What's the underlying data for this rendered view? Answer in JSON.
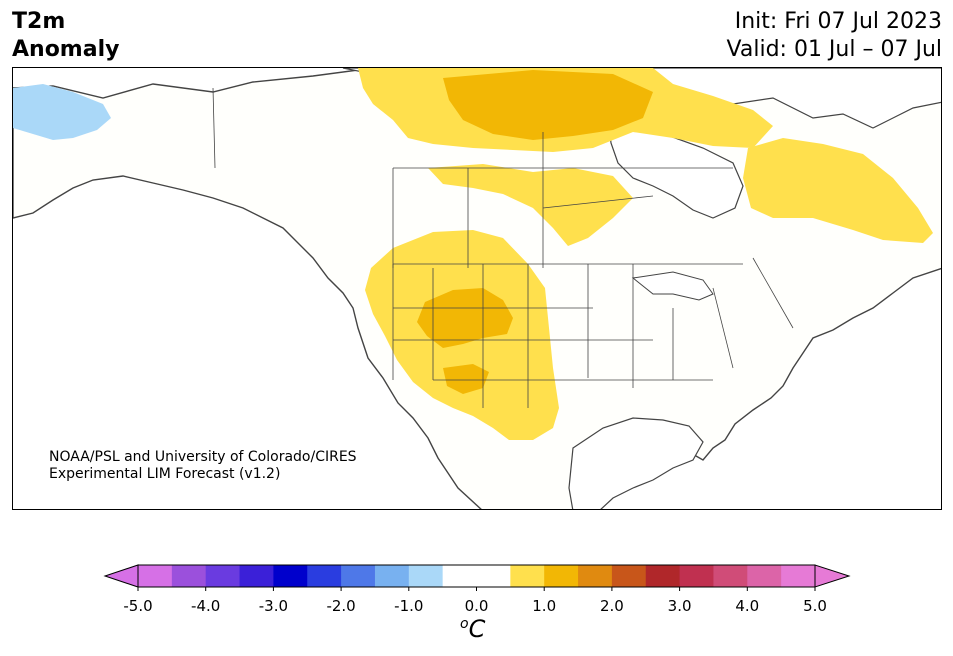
{
  "header": {
    "title_line1": "T2m",
    "title_line2": "Anomaly",
    "init_text": "Init: Fri 07 Jul 2023",
    "valid_text": "Valid: 01 Jul – 07 Jul"
  },
  "credit": {
    "line1": "NOAA/PSL and University of Colorado/CIRES",
    "line2": "Experimental LIM Forecast (v1.2)"
  },
  "colorbar": {
    "unit_label": "C",
    "unit_prefix": "o",
    "tick_labels": [
      "-5.0",
      "-4.0",
      "-3.0",
      "-2.0",
      "-1.0",
      "0.0",
      "1.0",
      "2.0",
      "3.0",
      "4.0",
      "5.0"
    ],
    "colors": [
      "#d670e6",
      "#9b50dc",
      "#6a3be0",
      "#3b20d8",
      "#0000cc",
      "#2a3de0",
      "#4e78e8",
      "#78b1f0",
      "#aad8f8",
      "#ffffff",
      "#ffffff",
      "#ffe04d",
      "#f2b705",
      "#e08a10",
      "#c8561a",
      "#b0272a",
      "#c03050",
      "#d04c78",
      "#dc64a8",
      "#e67ad6"
    ],
    "extend_low_color": "#d670e6",
    "extend_high_color": "#e67ad6"
  },
  "map": {
    "land_color": "#fffffc",
    "ocean_color": "#ffffff",
    "anomaly_regions": [
      {
        "name": "Alaska cool anomaly",
        "category": "-1.0 to -0.5",
        "color": "#aad8f8"
      },
      {
        "name": "Canadian Arctic warm anomaly",
        "category": "0.5 to 1.0",
        "color": "#ffe04d"
      },
      {
        "name": "Hudson Bay north warm anomaly",
        "category": "1.0 to 1.5",
        "color": "#f2b705"
      },
      {
        "name": "Quebec warm anomaly",
        "category": "0.5 to 1.0",
        "color": "#ffe04d"
      },
      {
        "name": "US West warm anomaly",
        "category": "0.5 to 1.0",
        "color": "#ffe04d"
      },
      {
        "name": "Great Basin / Rockies warm core",
        "category": "1.0 to 1.5",
        "color": "#f2b705"
      }
    ]
  }
}
